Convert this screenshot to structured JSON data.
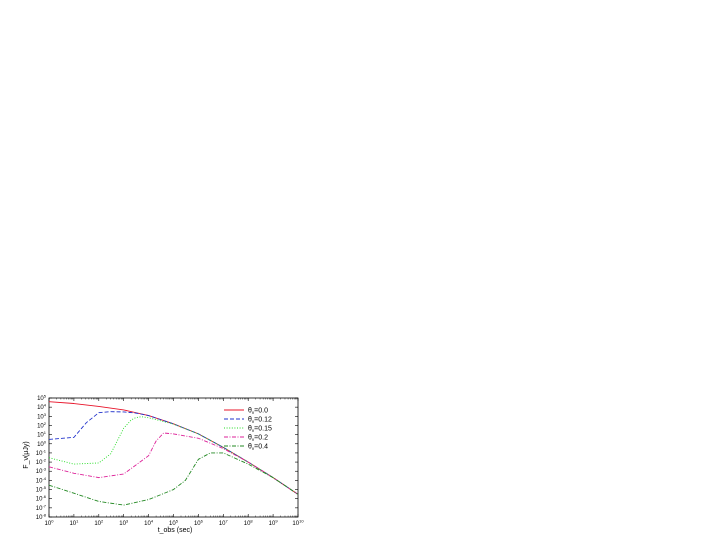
{
  "chart_data": {
    "type": "line",
    "title": "",
    "xlabel": "t_obs (sec)",
    "ylabel": "F_ν(μJy)",
    "xscale": "log",
    "yscale": "log",
    "xlim": [
      1,
      10000000000.0
    ],
    "ylim": [
      1e-08,
      100000.0
    ],
    "x_tick_exponents": [
      0,
      1,
      2,
      3,
      4,
      5,
      6,
      7,
      8,
      9,
      10
    ],
    "y_tick_exponents": [
      -8,
      -7,
      -6,
      -5,
      -4,
      -3,
      -2,
      -1,
      0,
      1,
      2,
      3,
      4,
      5
    ],
    "grid": false,
    "legend_position": "top-right",
    "series": [
      {
        "name": "θv=0.0",
        "name_base": "θ",
        "name_sub": "v",
        "name_value": "=0.0",
        "color": "#e8142a",
        "dash": "solid",
        "points": [
          [
            1,
            40000
          ],
          [
            10,
            25000
          ],
          [
            100,
            12000
          ],
          [
            1000,
            5000
          ],
          [
            10000,
            1200
          ],
          [
            100000,
            150
          ],
          [
            1000000,
            12
          ],
          [
            10000000,
            0.4
          ],
          [
            100000000,
            0.01
          ],
          [
            1000000000,
            0.0002
          ],
          [
            10000000000,
            3e-06
          ]
        ]
      },
      {
        "name": "θv=0.12",
        "name_base": "θ",
        "name_sub": "v",
        "name_value": "=0.12",
        "color": "#2233cc",
        "dash": "dashed",
        "points": [
          [
            1,
            3
          ],
          [
            10,
            5
          ],
          [
            31.6,
            200
          ],
          [
            100,
            2500
          ],
          [
            300,
            3200
          ],
          [
            1000,
            3000
          ],
          [
            3000,
            2300
          ],
          [
            10000,
            1200
          ],
          [
            100000,
            150
          ],
          [
            1000000,
            12
          ],
          [
            10000000,
            0.4
          ],
          [
            100000000,
            0.01
          ],
          [
            1000000000,
            0.0002
          ],
          [
            10000000000,
            3e-06
          ]
        ]
      },
      {
        "name": "θv=0.15",
        "name_base": "θ",
        "name_sub": "v",
        "name_value": "=0.15",
        "color": "#22dd22",
        "dash": "dotted",
        "points": [
          [
            1,
            0.03
          ],
          [
            10,
            0.006
          ],
          [
            100,
            0.008
          ],
          [
            300,
            0.08
          ],
          [
            1000,
            50
          ],
          [
            2000,
            400
          ],
          [
            3000,
            700
          ],
          [
            5000,
            900
          ],
          [
            10000,
            700
          ],
          [
            100000,
            140
          ],
          [
            1000000,
            12
          ],
          [
            10000000,
            0.4
          ],
          [
            100000000,
            0.01
          ],
          [
            1000000000,
            0.0002
          ],
          [
            10000000000,
            3e-06
          ]
        ]
      },
      {
        "name": "θv=0.2",
        "name_base": "θ",
        "name_sub": "v",
        "name_value": "=0.2",
        "color": "#dd2299",
        "dash": "dashdot",
        "points": [
          [
            1,
            0.003
          ],
          [
            10,
            0.0006
          ],
          [
            100,
            0.0002
          ],
          [
            1000,
            0.0005
          ],
          [
            10000,
            0.05
          ],
          [
            20000,
            2
          ],
          [
            40000,
            15
          ],
          [
            100000,
            12
          ],
          [
            1000000,
            4
          ],
          [
            10000000,
            0.3
          ],
          [
            100000000,
            0.01
          ],
          [
            1000000000,
            0.0002
          ],
          [
            10000000000,
            3e-06
          ]
        ]
      },
      {
        "name": "θv=0.4",
        "name_base": "θ",
        "name_sub": "v",
        "name_value": "=0.4",
        "color": "#228822",
        "dash": "dashdot",
        "points": [
          [
            1,
            3e-05
          ],
          [
            10,
            4e-06
          ],
          [
            100,
            5e-07
          ],
          [
            1000,
            2e-07
          ],
          [
            10000,
            8e-07
          ],
          [
            100000,
            1e-05
          ],
          [
            300000,
            0.0001
          ],
          [
            1000000,
            0.02
          ],
          [
            3000000,
            0.1
          ],
          [
            10000000,
            0.1
          ],
          [
            100000000,
            0.006
          ],
          [
            1000000000,
            0.0002
          ],
          [
            10000000000,
            3e-06
          ]
        ]
      }
    ]
  }
}
